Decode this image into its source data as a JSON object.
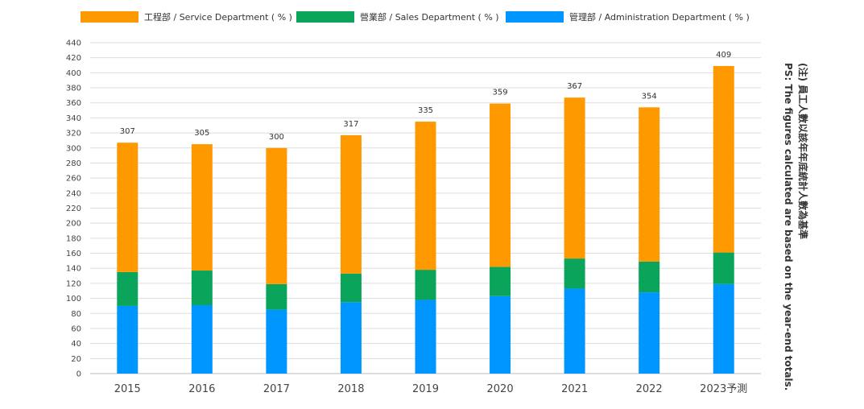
{
  "chart_data": {
    "type": "bar",
    "stacked": true,
    "categories": [
      "2015",
      "2016",
      "2017",
      "2018",
      "2019",
      "2020",
      "2021",
      "2022",
      "2023予測"
    ],
    "series": [
      {
        "name": "管理部 / Administration Department ( % )",
        "color": "#0096ff",
        "values": [
          90,
          91,
          85,
          95,
          98,
          103,
          113,
          108,
          119
        ]
      },
      {
        "name": "營業部 / Sales Department ( % )",
        "color": "#0aa55a",
        "values": [
          45,
          46,
          34,
          38,
          40,
          39,
          40,
          41,
          42
        ]
      },
      {
        "name": "工程部 / Service Department ( % )",
        "color": "#ff9900",
        "values": [
          172,
          168,
          181,
          184,
          197,
          217,
          214,
          205,
          248
        ]
      }
    ],
    "totals": [
      "307",
      "305",
      "300",
      "317",
      "335",
      "359",
      "367",
      "354",
      "409"
    ],
    "legend_order": [
      2,
      1,
      0
    ],
    "ylim": [
      0,
      440
    ],
    "ytick_step": 20,
    "grid": true,
    "legend_position": "top",
    "note_lines": [
      "(注) 員工人數以該年年底統計人數為基準",
      "PS: The figures calculated are based on the year-end totals."
    ]
  }
}
